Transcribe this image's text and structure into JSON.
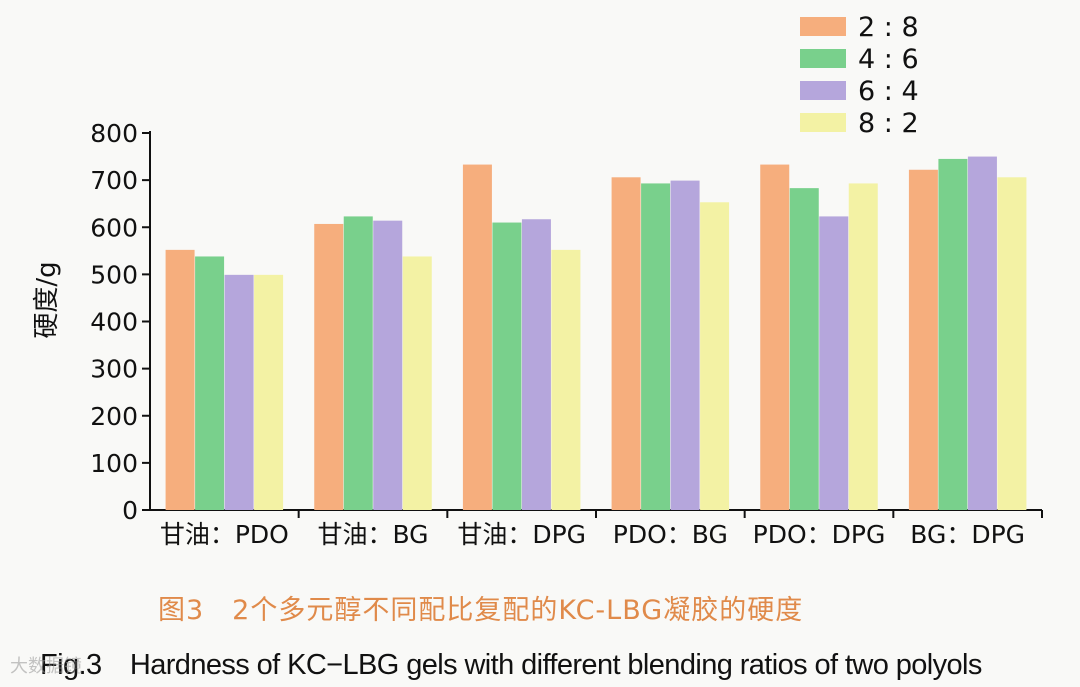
{
  "chart_data": {
    "type": "bar",
    "categories": [
      "甘油：PDO",
      "甘油：BG",
      "甘油：DPG",
      "PDO：BG",
      "PDO：DPG",
      "BG：DPG"
    ],
    "series": [
      {
        "name": "2 : 8",
        "color": "#f6ae7d",
        "values": [
          552,
          607,
          733,
          706,
          733,
          722
        ]
      },
      {
        "name": "4 : 6",
        "color": "#79d08c",
        "values": [
          538,
          623,
          610,
          693,
          683,
          745
        ]
      },
      {
        "name": "6 : 4",
        "color": "#b5a6dc",
        "values": [
          499,
          614,
          617,
          699,
          623,
          750
        ]
      },
      {
        "name": "8 : 2",
        "color": "#f3f2a4",
        "values": [
          499,
          538,
          552,
          653,
          693,
          706
        ]
      }
    ],
    "ylabel": "硬度/g",
    "xlabel": "",
    "ylim": [
      0,
      800
    ],
    "yticks": [
      0,
      100,
      200,
      300,
      400,
      500,
      600,
      700,
      800
    ],
    "legend": "top-right"
  },
  "caption": {
    "cn": "图3　2个多元醇不同配比复配的KC-LBG凝胶的硬度",
    "en": "Fig.3　Hardness of KC−LBG gels with different blending ratios of two polyols"
  },
  "watermark": "大数据镜"
}
